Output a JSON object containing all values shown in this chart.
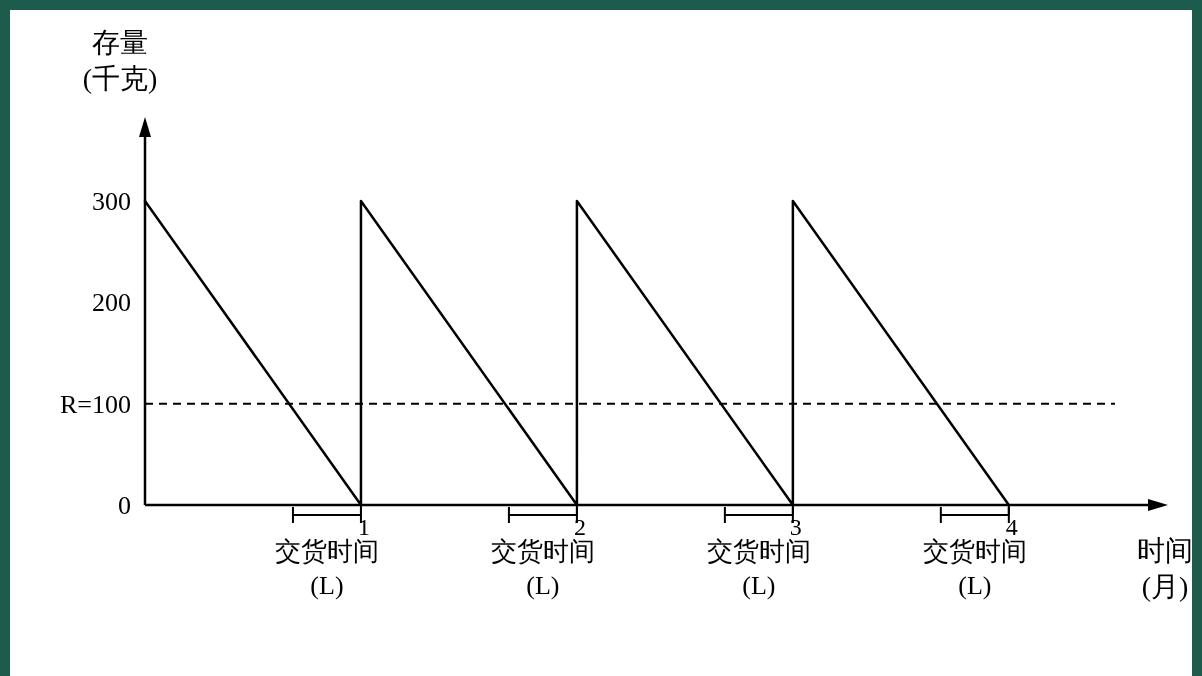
{
  "chart_data": {
    "type": "line",
    "xlabel": "时间\n(月)",
    "ylabel": "存量\n(千克)",
    "x": [
      0,
      1,
      1,
      2,
      2,
      3,
      3,
      4
    ],
    "series": [
      {
        "color": "#000000",
        "values": [
          300,
          0,
          300,
          0,
          300,
          0,
          300,
          0
        ]
      }
    ],
    "xlim": [
      0,
      4.7
    ],
    "ylim": [
      0,
      375
    ],
    "xticks": [
      1,
      2,
      3,
      4
    ],
    "yticks": [
      0,
      {
        "value": 100,
        "label": "R=100"
      },
      200,
      300
    ],
    "grid": false,
    "marker": "none",
    "line_style": "solid",
    "ref_lines": [
      {
        "axis": "y",
        "value": 100,
        "label": null,
        "line_style": "dashed",
        "color": "#000000"
      }
    ],
    "annotations": [
      "交货时间\n(L)",
      "交货时间\n(L)",
      "交货时间\n(L)",
      "交货时间\n(L)"
    ]
  }
}
